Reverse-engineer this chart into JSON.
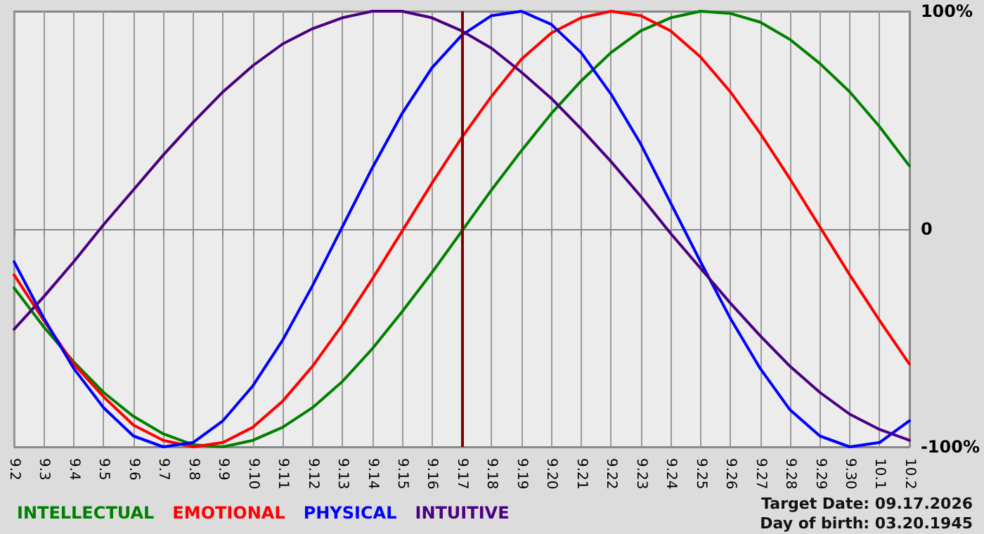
{
  "chart_data": {
    "type": "line",
    "categories": [
      "9.2",
      "9.3",
      "9.4",
      "9.5",
      "9.6",
      "9.7",
      "9.8",
      "9.9",
      "9.10",
      "9.11",
      "9.12",
      "9.13",
      "9.14",
      "9.15",
      "9.16",
      "9.17",
      "9.18",
      "9.19",
      "9.20",
      "9.21",
      "9.22",
      "9.23",
      "9.24",
      "9.25",
      "9.26",
      "9.27",
      "9.28",
      "9.29",
      "9.30",
      "10.1",
      "10.2"
    ],
    "series": [
      {
        "name": "INTELLECTUAL",
        "color": "#008000",
        "values": [
          -27,
          -45,
          -61,
          -75,
          -86,
          -94,
          -99,
          -100,
          -97,
          -91,
          -82,
          -70,
          -55,
          -38,
          -20,
          -1,
          18,
          36,
          53,
          68,
          81,
          91,
          97,
          100,
          99,
          95,
          87,
          76,
          63,
          47,
          29
        ]
      },
      {
        "name": "EMOTIONAL",
        "color": "#ff0000",
        "values": [
          -21,
          -42,
          -62,
          -77,
          -90,
          -97,
          -100,
          -98,
          -91,
          -79,
          -63,
          -44,
          -23,
          -1,
          21,
          42,
          61,
          78,
          90,
          97,
          100,
          98,
          91,
          79,
          63,
          44,
          23,
          1,
          -21,
          -42,
          -62
        ]
      },
      {
        "name": "PHYSICAL",
        "color": "#0000ff",
        "values": [
          -15,
          -41,
          -64,
          -82,
          -95,
          -100,
          -98,
          -88,
          -72,
          -51,
          -26,
          1,
          28,
          53,
          74,
          89,
          98,
          100,
          94,
          81,
          62,
          39,
          12,
          -15,
          -41,
          -64,
          -83,
          -95,
          -100,
          -98,
          -88
        ]
      },
      {
        "name": "INTUITIVE",
        "color": "#4b0082",
        "values": [
          -46,
          -31,
          -15,
          2,
          18,
          34,
          49,
          63,
          75,
          85,
          92,
          97,
          100,
          100,
          97,
          91,
          83,
          72,
          60,
          46,
          31,
          15,
          -2,
          -18,
          -34,
          -49,
          -63,
          -75,
          -85,
          -92,
          -97
        ]
      }
    ],
    "ylim": [
      -100,
      100
    ],
    "yticks": [
      {
        "value": -100,
        "label": "-100%"
      },
      0,
      {
        "value": 100,
        "label": "100%"
      }
    ],
    "ref_lines": [
      {
        "axis": "x",
        "value": "9.17",
        "color": "#800000"
      }
    ],
    "annotations": [
      "Target Date: 09.17.2026",
      "Day of birth: 03.20.1945"
    ],
    "grid": true,
    "legend": "bottom left",
    "marker": "none",
    "line_style": "solid"
  }
}
